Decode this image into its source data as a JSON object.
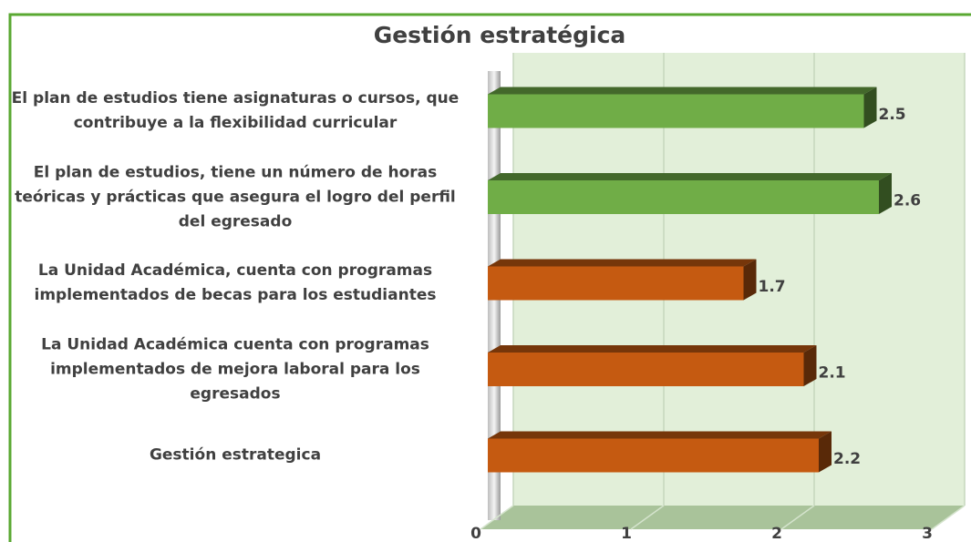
{
  "chart_data": {
    "type": "bar3d_horizontal",
    "title": "Gestión estratégica",
    "categories": [
      "El plan de estudios tiene asignaturas o cursos, que contribuye a la flexibilidad curricular",
      "El plan de estudios, tiene un número de horas teóricas y prácticas que asegura el logro del perfil del egresado",
      "La Unidad Académica, cuenta con programas implementados de becas para los estudiantes",
      "La Unidad Académica cuenta con programas implementados de mejora laboral para los egresados",
      "Gestión estrategica"
    ],
    "values": [
      2.5,
      2.6,
      1.7,
      2.1,
      2.2
    ],
    "colors": [
      "#70ad47",
      "#70ad47",
      "#c55a11",
      "#c55a11",
      "#c55a11"
    ],
    "xlim": [
      0,
      3
    ],
    "xticks": [
      0,
      1,
      2,
      3
    ],
    "grid": true
  }
}
